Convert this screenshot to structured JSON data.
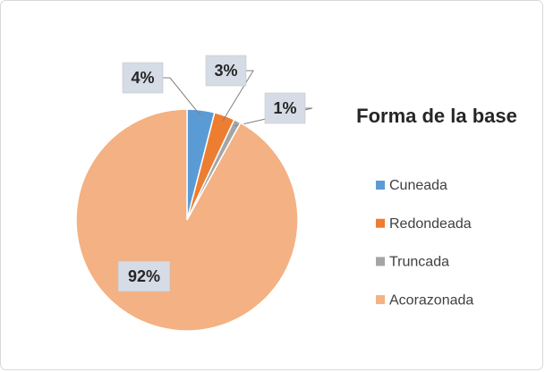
{
  "chart_data": {
    "type": "pie",
    "title": "Forma de la base",
    "categories": [
      "Cuneada",
      "Redondeada",
      "Truncada",
      "Acorazonada"
    ],
    "values": [
      4,
      3,
      1,
      92
    ],
    "value_labels": [
      "4%",
      "3%",
      "1%",
      "92%"
    ],
    "colors": [
      "#5b9bd5",
      "#ed7d31",
      "#a5a5a5",
      "#f4b183"
    ],
    "legend": "right"
  }
}
